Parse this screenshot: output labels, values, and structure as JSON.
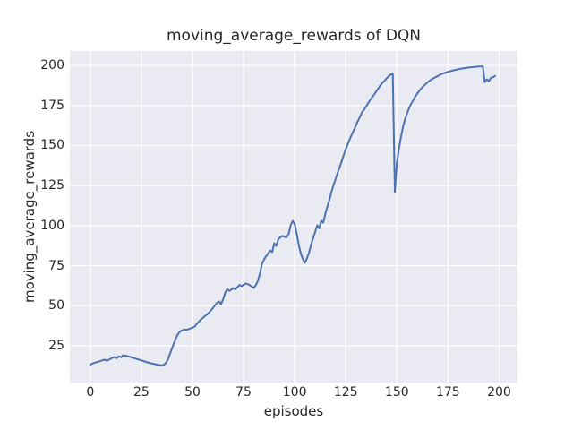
{
  "style": {
    "figure_bg": "#FFFFFF",
    "plot_bg": "#EAEAF2",
    "grid_color": "#FFFFFF",
    "text_color": "#262626",
    "line_color": "#4C72B0"
  },
  "chart_data": {
    "type": "line",
    "title": "moving_average_rewards of DQN",
    "xlabel": "episodes",
    "ylabel": "moving_average_rewards",
    "xlim": [
      -10,
      209
    ],
    "ylim": [
      2,
      209
    ],
    "xticks": [
      0,
      25,
      50,
      75,
      100,
      125,
      150,
      175,
      200
    ],
    "yticks": [
      25,
      50,
      75,
      100,
      125,
      150,
      175,
      200
    ],
    "grid": true,
    "legend_position": "none",
    "series": [
      {
        "name": "moving_average_rewards",
        "color": "#4C72B0",
        "points": [
          [
            0,
            13.2
          ],
          [
            1,
            13.8
          ],
          [
            2,
            14.3
          ],
          [
            3,
            14.7
          ],
          [
            4,
            15.0
          ],
          [
            5,
            15.5
          ],
          [
            6,
            15.9
          ],
          [
            7,
            16.3
          ],
          [
            8,
            15.6
          ],
          [
            9,
            16.2
          ],
          [
            10,
            16.9
          ],
          [
            11,
            17.5
          ],
          [
            12,
            18.0
          ],
          [
            13,
            17.3
          ],
          [
            14,
            18.4
          ],
          [
            15,
            17.8
          ],
          [
            16,
            19.0
          ],
          [
            17,
            18.8
          ],
          [
            18,
            18.5
          ],
          [
            19,
            18.2
          ],
          [
            20,
            17.8
          ],
          [
            21,
            17.4
          ],
          [
            22,
            17.0
          ],
          [
            23,
            16.6
          ],
          [
            24,
            16.2
          ],
          [
            25,
            15.8
          ],
          [
            26,
            15.4
          ],
          [
            27,
            15.0
          ],
          [
            28,
            14.6
          ],
          [
            29,
            14.3
          ],
          [
            30,
            14.0
          ],
          [
            31,
            13.7
          ],
          [
            32,
            13.4
          ],
          [
            33,
            13.1
          ],
          [
            34,
            12.9
          ],
          [
            35,
            12.8
          ],
          [
            36,
            13.0
          ],
          [
            37,
            14.2
          ],
          [
            38,
            16.5
          ],
          [
            39,
            20.0
          ],
          [
            40,
            23.5
          ],
          [
            41,
            26.8
          ],
          [
            42,
            30.0
          ],
          [
            43,
            32.5
          ],
          [
            44,
            34.0
          ],
          [
            45,
            34.6
          ],
          [
            46,
            35.2
          ],
          [
            47,
            34.9
          ],
          [
            48,
            35.3
          ],
          [
            49,
            35.8
          ],
          [
            50,
            36.3
          ],
          [
            51,
            36.9
          ],
          [
            52,
            38.5
          ],
          [
            53,
            39.8
          ],
          [
            54,
            41.2
          ],
          [
            55,
            42.3
          ],
          [
            56,
            43.4
          ],
          [
            57,
            44.4
          ],
          [
            58,
            45.6
          ],
          [
            59,
            47.0
          ],
          [
            60,
            48.5
          ],
          [
            61,
            50.2
          ],
          [
            62,
            51.8
          ],
          [
            63,
            52.7
          ],
          [
            64,
            50.8
          ],
          [
            65,
            54.0
          ],
          [
            66,
            58.0
          ],
          [
            67,
            60.3
          ],
          [
            68,
            59.2
          ],
          [
            69,
            60.0
          ],
          [
            70,
            61.0
          ],
          [
            71,
            60.2
          ],
          [
            72,
            61.5
          ],
          [
            73,
            62.9
          ],
          [
            74,
            62.2
          ],
          [
            75,
            63.0
          ],
          [
            76,
            63.9
          ],
          [
            77,
            63.5
          ],
          [
            78,
            62.8
          ],
          [
            79,
            62.0
          ],
          [
            80,
            61.1
          ],
          [
            81,
            62.8
          ],
          [
            82,
            65.5
          ],
          [
            83,
            70.0
          ],
          [
            84,
            76.0
          ],
          [
            85,
            78.8
          ],
          [
            86,
            80.8
          ],
          [
            87,
            82.5
          ],
          [
            88,
            84.4
          ],
          [
            89,
            83.4
          ],
          [
            90,
            89.0
          ],
          [
            91,
            87.2
          ],
          [
            92,
            91.5
          ],
          [
            93,
            92.7
          ],
          [
            94,
            93.6
          ],
          [
            95,
            93.0
          ],
          [
            96,
            92.7
          ],
          [
            97,
            94.6
          ],
          [
            98,
            100.0
          ],
          [
            99,
            103.0
          ],
          [
            100,
            101.0
          ],
          [
            101,
            95.0
          ],
          [
            102,
            88.0
          ],
          [
            103,
            82.5
          ],
          [
            104,
            79.0
          ],
          [
            105,
            76.8
          ],
          [
            106,
            79.5
          ],
          [
            107,
            83.0
          ],
          [
            108,
            88.0
          ],
          [
            109,
            92.0
          ],
          [
            110,
            96.0
          ],
          [
            111,
            100.2
          ],
          [
            112,
            98.3
          ],
          [
            113,
            103.0
          ],
          [
            114,
            101.8
          ],
          [
            115,
            107.5
          ],
          [
            116,
            112.0
          ],
          [
            117,
            116.0
          ],
          [
            118,
            121.0
          ],
          [
            119,
            125.3
          ],
          [
            120,
            129.0
          ],
          [
            121,
            133.0
          ],
          [
            122,
            136.5
          ],
          [
            123,
            140.2
          ],
          [
            124,
            144.0
          ],
          [
            125,
            147.7
          ],
          [
            126,
            151.0
          ],
          [
            127,
            154.2
          ],
          [
            128,
            157.0
          ],
          [
            129,
            159.8
          ],
          [
            130,
            162.5
          ],
          [
            131,
            165.4
          ],
          [
            132,
            168.0
          ],
          [
            133,
            170.9
          ],
          [
            134,
            172.5
          ],
          [
            135,
            174.5
          ],
          [
            136,
            176.5
          ],
          [
            137,
            178.5
          ],
          [
            138,
            180.3
          ],
          [
            139,
            182.0
          ],
          [
            140,
            184.0
          ],
          [
            141,
            185.8
          ],
          [
            142,
            187.7
          ],
          [
            143,
            189.3
          ],
          [
            144,
            190.5
          ],
          [
            145,
            192.0
          ],
          [
            146,
            193.3
          ],
          [
            147,
            194.3
          ],
          [
            148,
            194.8
          ],
          [
            149,
            121.0
          ],
          [
            150,
            139.3
          ],
          [
            151,
            148.0
          ],
          [
            152,
            155.5
          ],
          [
            153,
            161.6
          ],
          [
            154,
            166.5
          ],
          [
            155,
            170.0
          ],
          [
            156,
            173.5
          ],
          [
            157,
            176.2
          ],
          [
            158,
            178.3
          ],
          [
            159,
            180.5
          ],
          [
            160,
            182.5
          ],
          [
            161,
            184.2
          ],
          [
            162,
            185.8
          ],
          [
            163,
            187.2
          ],
          [
            164,
            188.3
          ],
          [
            165,
            189.4
          ],
          [
            166,
            190.4
          ],
          [
            167,
            191.3
          ],
          [
            168,
            192.1
          ],
          [
            169,
            192.8
          ],
          [
            170,
            193.4
          ],
          [
            171,
            194.1
          ],
          [
            172,
            194.7
          ],
          [
            173,
            195.1
          ],
          [
            174,
            195.6
          ],
          [
            175,
            196.0
          ],
          [
            176,
            196.4
          ],
          [
            177,
            196.7
          ],
          [
            178,
            197.0
          ],
          [
            179,
            197.3
          ],
          [
            180,
            197.6
          ],
          [
            181,
            197.9
          ],
          [
            182,
            198.1
          ],
          [
            183,
            198.3
          ],
          [
            184,
            198.5
          ],
          [
            185,
            198.7
          ],
          [
            186,
            198.8
          ],
          [
            187,
            199.0
          ],
          [
            188,
            199.1
          ],
          [
            189,
            199.2
          ],
          [
            190,
            199.3
          ],
          [
            191,
            199.4
          ],
          [
            192,
            199.5
          ],
          [
            193,
            189.6
          ],
          [
            194,
            191.4
          ],
          [
            195,
            190.1
          ],
          [
            196,
            192.3
          ],
          [
            197,
            192.6
          ],
          [
            198,
            193.5
          ]
        ]
      }
    ]
  }
}
